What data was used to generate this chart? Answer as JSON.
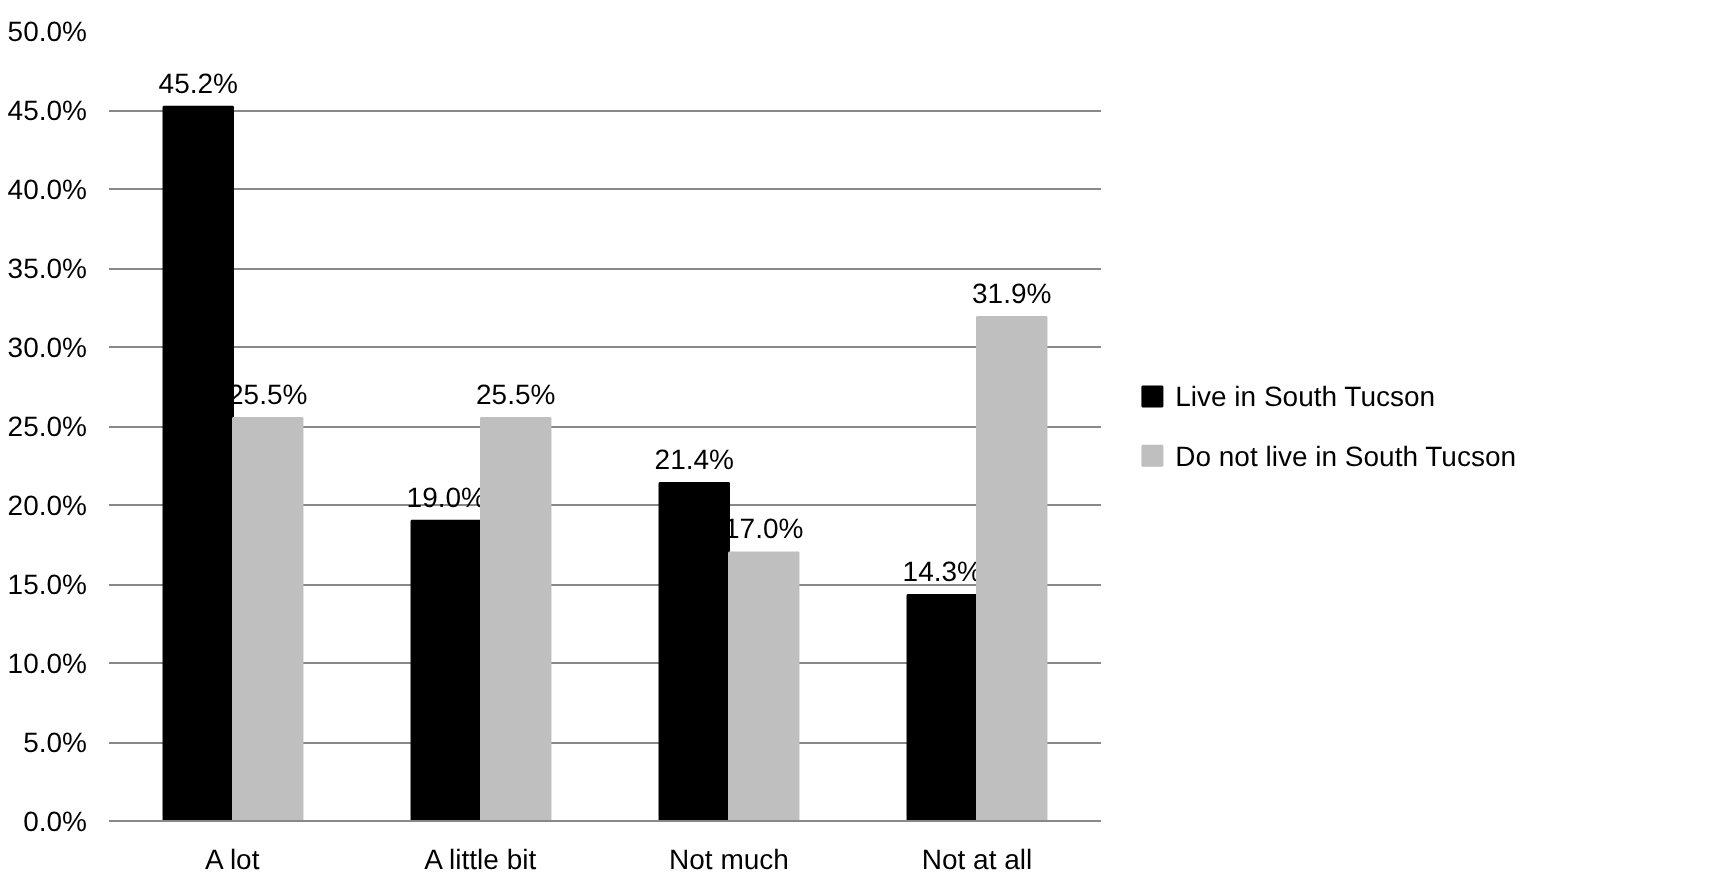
{
  "chart_data": {
    "type": "bar",
    "categories": [
      "A lot",
      "A little bit",
      "Not much",
      "Not at all"
    ],
    "series": [
      {
        "name": "Live in South Tucson",
        "color": "#000000",
        "values": [
          45.2,
          19.0,
          21.4,
          14.3
        ],
        "value_labels": [
          "45.2%",
          "19.0%",
          "21.4%",
          "14.3%"
        ]
      },
      {
        "name": "Do not live in South Tucson",
        "color": "#bfbfbf",
        "values": [
          25.5,
          25.5,
          17.0,
          31.9
        ],
        "value_labels": [
          "25.5%",
          "25.5%",
          "17.0%",
          "31.9%"
        ]
      }
    ],
    "ylim": [
      0,
      50
    ],
    "yticks": [
      {
        "value": 0,
        "label": "0.0%"
      },
      {
        "value": 5,
        "label": "5.0%"
      },
      {
        "value": 10,
        "label": "10.0%"
      },
      {
        "value": 15,
        "label": "15.0%"
      },
      {
        "value": 20,
        "label": "20.0%"
      },
      {
        "value": 25,
        "label": "25.0%"
      },
      {
        "value": 30,
        "label": "30.0%"
      },
      {
        "value": 35,
        "label": "35.0%"
      },
      {
        "value": 40,
        "label": "40.0%"
      },
      {
        "value": 45,
        "label": "45.0%"
      },
      {
        "value": 50,
        "label": "50.0%"
      }
    ],
    "grid": "y",
    "legend": "right"
  }
}
